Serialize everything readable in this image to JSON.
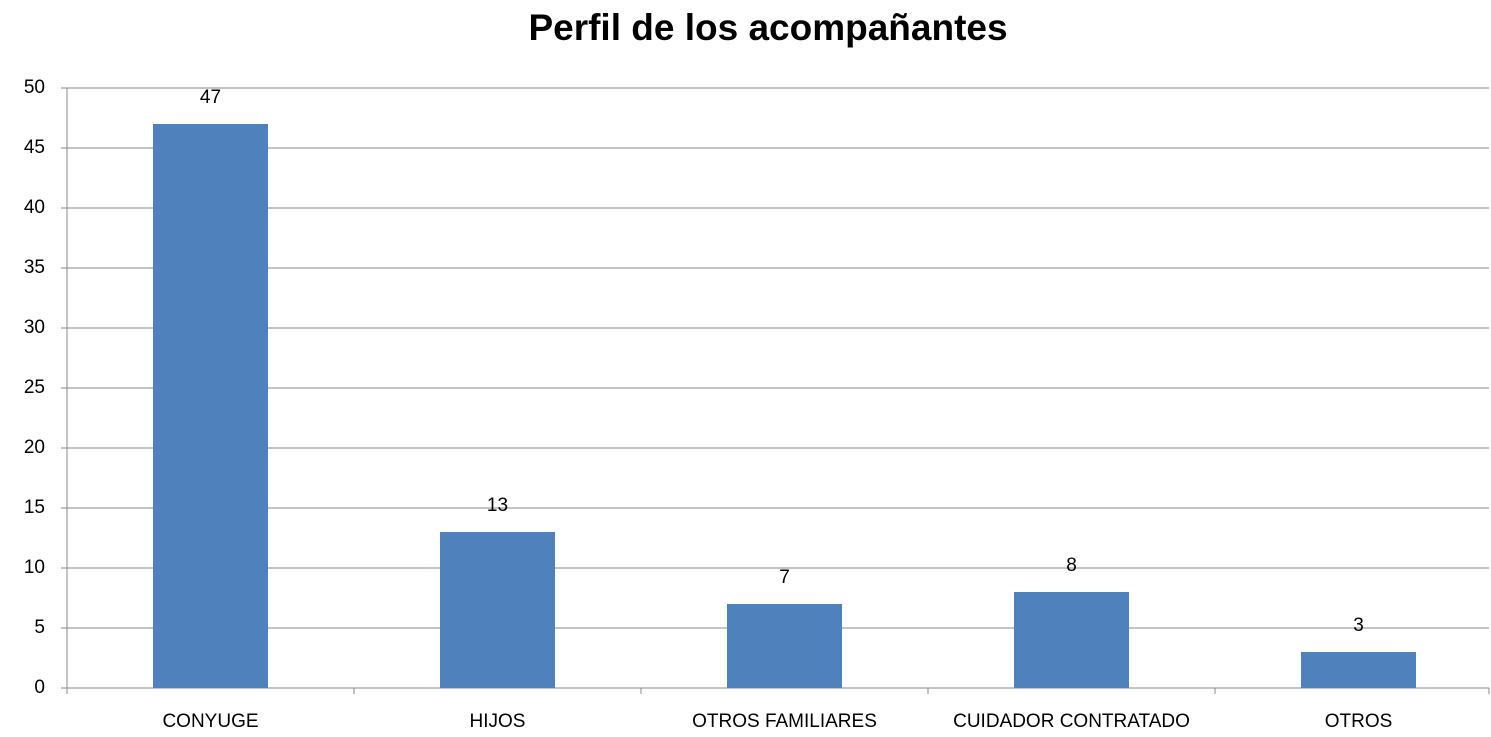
{
  "chart_data": {
    "type": "bar",
    "title": "Perfil de los acompañantes",
    "categories": [
      "CONYUGE",
      "HIJOS",
      "OTROS FAMILIARES",
      "CUIDADOR CONTRATADO",
      "OTROS"
    ],
    "values": [
      47,
      13,
      7,
      8,
      3
    ],
    "color": "#4f81bd",
    "ylim": [
      0,
      50
    ],
    "yticks": [
      0,
      5,
      10,
      15,
      20,
      25,
      30,
      35,
      40,
      45,
      50
    ],
    "grid": true
  }
}
